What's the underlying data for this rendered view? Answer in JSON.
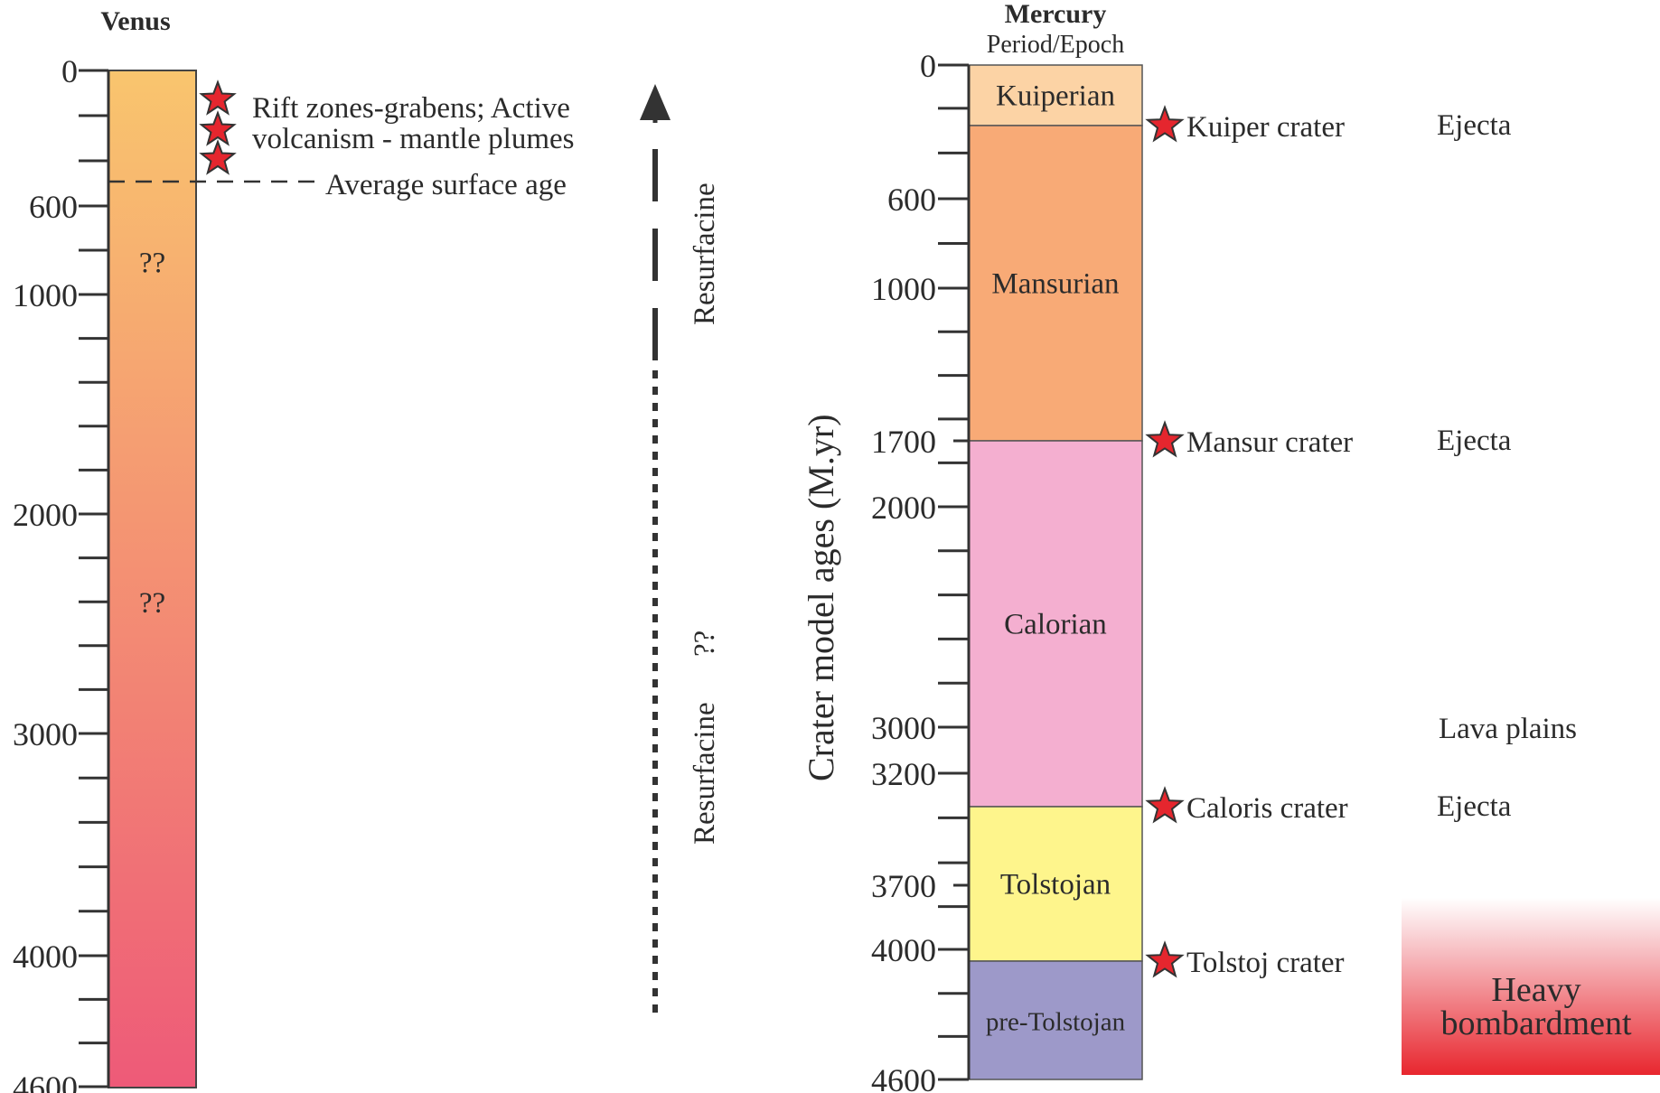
{
  "chart_data": [
    {
      "type": "table",
      "title": "Venus",
      "ylabel": "",
      "ylim": [
        0,
        4600
      ],
      "ticks": [
        {
          "value": 0,
          "label": "0"
        },
        {
          "value": 200,
          "label": ""
        },
        {
          "value": 400,
          "label": ""
        },
        {
          "value": 600,
          "label": "600"
        },
        {
          "value": 800,
          "label": ""
        },
        {
          "value": 1000,
          "label": "1000"
        },
        {
          "value": 1200,
          "label": ""
        },
        {
          "value": 1400,
          "label": ""
        },
        {
          "value": 1600,
          "label": ""
        },
        {
          "value": 1800,
          "label": ""
        },
        {
          "value": 2000,
          "label": "2000"
        },
        {
          "value": 2200,
          "label": ""
        },
        {
          "value": 2400,
          "label": ""
        },
        {
          "value": 2600,
          "label": ""
        },
        {
          "value": 2800,
          "label": ""
        },
        {
          "value": 3000,
          "label": "3000"
        },
        {
          "value": 3200,
          "label": ""
        },
        {
          "value": 3400,
          "label": ""
        },
        {
          "value": 3600,
          "label": ""
        },
        {
          "value": 3800,
          "label": ""
        },
        {
          "value": 4000,
          "label": "4000"
        },
        {
          "value": 4200,
          "label": ""
        },
        {
          "value": 4400,
          "label": ""
        },
        {
          "value": 4600,
          "label": "4600"
        }
      ],
      "gradient": {
        "top": "#F9C56E",
        "bottom": "#EE5A78"
      },
      "uncertain_marks": [
        {
          "value": 850,
          "label": "??"
        },
        {
          "value": 2400,
          "label": "??"
        }
      ],
      "events": [
        {
          "value": 150,
          "marker": "star"
        },
        {
          "value": 300,
          "marker": "star"
        },
        {
          "value": 450,
          "marker": "star"
        }
      ],
      "event_text": [
        "Rift zones-grabens; Active",
        "volcanism - mantle plumes"
      ],
      "average_surface_age": {
        "value": 550,
        "label": "Average surface age"
      },
      "resurfacing": {
        "direction": "up",
        "labels": [
          {
            "text": "Resurfacine",
            "segment": "solid-dashed"
          },
          {
            "text": "Resurfacine",
            "segment": "dotted"
          },
          {
            "text": "??",
            "segment": "dotted"
          }
        ]
      }
    },
    {
      "type": "table",
      "title": "Mercury",
      "subtitle": "Period/Epoch",
      "ylabel": "Crater model ages (M.yr)",
      "ylim": [
        0,
        4600
      ],
      "ticks": [
        {
          "value": 0,
          "label": "0"
        },
        {
          "value": 200,
          "label": ""
        },
        {
          "value": 400,
          "label": ""
        },
        {
          "value": 600,
          "label": "600"
        },
        {
          "value": 800,
          "label": ""
        },
        {
          "value": 1000,
          "label": "1000"
        },
        {
          "value": 1200,
          "label": ""
        },
        {
          "value": 1400,
          "label": ""
        },
        {
          "value": 1600,
          "label": ""
        },
        {
          "value": 1700,
          "label": "1700"
        },
        {
          "value": 1800,
          "label": ""
        },
        {
          "value": 2000,
          "label": "2000"
        },
        {
          "value": 2200,
          "label": ""
        },
        {
          "value": 2400,
          "label": ""
        },
        {
          "value": 2600,
          "label": ""
        },
        {
          "value": 2800,
          "label": ""
        },
        {
          "value": 3000,
          "label": "3000"
        },
        {
          "value": 3200,
          "label": "3200"
        },
        {
          "value": 3400,
          "label": ""
        },
        {
          "value": 3600,
          "label": ""
        },
        {
          "value": 3700,
          "label": "3700"
        },
        {
          "value": 3800,
          "label": ""
        },
        {
          "value": 4000,
          "label": "4000"
        },
        {
          "value": 4200,
          "label": ""
        },
        {
          "value": 4400,
          "label": ""
        },
        {
          "value": 4600,
          "label": "4600"
        }
      ],
      "periods": [
        {
          "name": "Kuiperian",
          "start": 0,
          "end": 280,
          "color": "#FCD3A5"
        },
        {
          "name": "Mansurian",
          "start": 280,
          "end": 1700,
          "color": "#F8AA76"
        },
        {
          "name": "Calorian",
          "start": 1700,
          "end": 3350,
          "color": "#F4AFD0"
        },
        {
          "name": "Tolstojan",
          "start": 3350,
          "end": 4050,
          "color": "#FEF58C"
        },
        {
          "name": "pre-Tolstojan",
          "start": 4050,
          "end": 4600,
          "color": "#9D99C9"
        }
      ],
      "craters": [
        {
          "name": "Kuiper crater",
          "value": 280,
          "unit": "Ejecta"
        },
        {
          "name": "Mansur crater",
          "value": 1700,
          "unit": "Ejecta"
        },
        {
          "name": "Caloris crater",
          "value": 3350,
          "unit": "Ejecta"
        },
        {
          "name": "Tolstoj crater",
          "value": 4050,
          "unit": ""
        }
      ],
      "annotations": [
        {
          "text": "Lava plains",
          "value": 3000
        }
      ],
      "heavy_bombardment": {
        "lines": [
          "Heavy",
          "bombardment"
        ],
        "range": [
          3800,
          4600
        ],
        "gradient": {
          "top": "#FFFFFF",
          "bottom": "#E8262E"
        }
      }
    }
  ]
}
